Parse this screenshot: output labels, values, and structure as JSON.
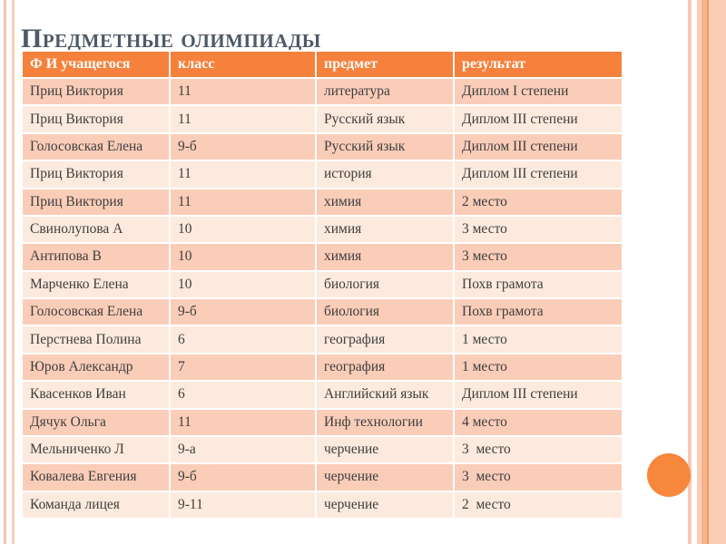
{
  "slide": {
    "title": "Предметные олимпиады"
  },
  "colors": {
    "header_bg": "#f5813c",
    "row_dark": "#facdb9",
    "row_light": "#fdeade",
    "title_text": "#4e5a66",
    "cell_text": "#3e3e3e",
    "accent_circle": "#f6873c",
    "side_stripe": "#f8c8b0"
  },
  "table": {
    "columns": [
      "Ф И учащегося",
      "класс",
      "предмет",
      "результат"
    ],
    "rows": [
      [
        "Приц Виктория",
        "11",
        "литература",
        "Диплом I степени"
      ],
      [
        "Приц Виктория",
        "11",
        "Русский язык",
        "Диплом III степени"
      ],
      [
        "Голосовская Елена",
        "9-б",
        "Русский язык",
        "Диплом III степени"
      ],
      [
        "Приц Виктория",
        "11",
        "история",
        "Диплом III степени"
      ],
      [
        "Приц Виктория",
        "11",
        "химия",
        "2 место"
      ],
      [
        "Свинолупова А",
        "10",
        "химия",
        "3 место"
      ],
      [
        "Антипова В",
        "10",
        "химия",
        "3 место"
      ],
      [
        "Марченко Елена",
        "10",
        "биология",
        "Похв грамота"
      ],
      [
        "Голосовская Елена",
        "9-б",
        "биология",
        "Похв грамота"
      ],
      [
        "Перстнева Полина",
        "6",
        "география",
        "1 место"
      ],
      [
        "Юров Александр",
        "7",
        "география",
        "1 место"
      ],
      [
        "Квасенков Иван",
        "6",
        "Английский язык",
        "Диплом III степени"
      ],
      [
        "Дячук Ольга",
        "11",
        "Инф технологии",
        "4 место"
      ],
      [
        "Мельниченко Л",
        "9-а",
        "черчение",
        "3  место"
      ],
      [
        "Ковалева Евгения",
        "9-б",
        "черчение",
        "3  место"
      ],
      [
        "Команда лицея",
        "9-11",
        "черчение",
        "2  место"
      ]
    ]
  }
}
